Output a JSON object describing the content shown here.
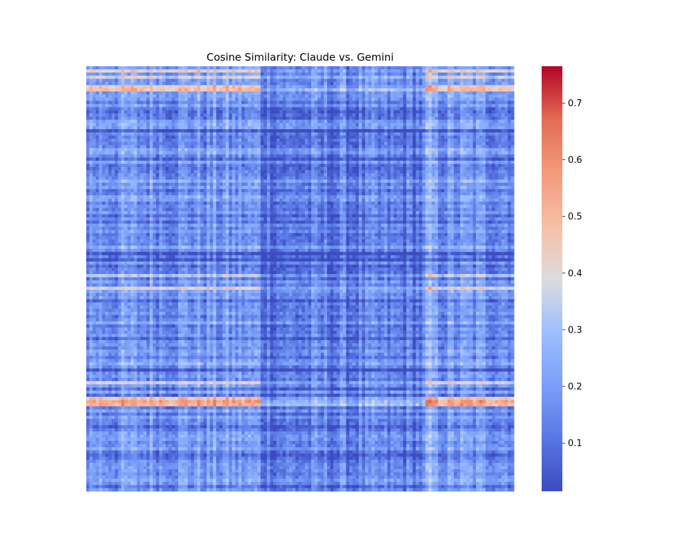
{
  "chart_data": {
    "type": "heatmap",
    "title": "Cosine Similarity: Claude vs. Gemini",
    "xlabel": "",
    "ylabel": "",
    "colormap": "coolwarm",
    "value_range": [
      0.015,
      0.765
    ],
    "colorbar_ticks": [
      0.1,
      0.2,
      0.3,
      0.4,
      0.5,
      0.6,
      0.7
    ],
    "colorbar_tick_labels": [
      "0.1",
      "0.2",
      "0.3",
      "0.4",
      "0.5",
      "0.6",
      "0.7"
    ],
    "grid": false,
    "tick_labels_visible": false,
    "approx_grid_size": {
      "rows": 135,
      "cols": 135
    },
    "approx_values": {
      "overall_typical": 0.18,
      "min": 0.015,
      "max": 0.765,
      "low_band_columns_middle": 0.1,
      "highlight_rows_near_top": 0.55,
      "highlight_rows_lower_left": 0.65
    },
    "colors": {
      "low": "#3b4cc0",
      "mid": "#dddcdc",
      "high": "#b40426"
    }
  }
}
